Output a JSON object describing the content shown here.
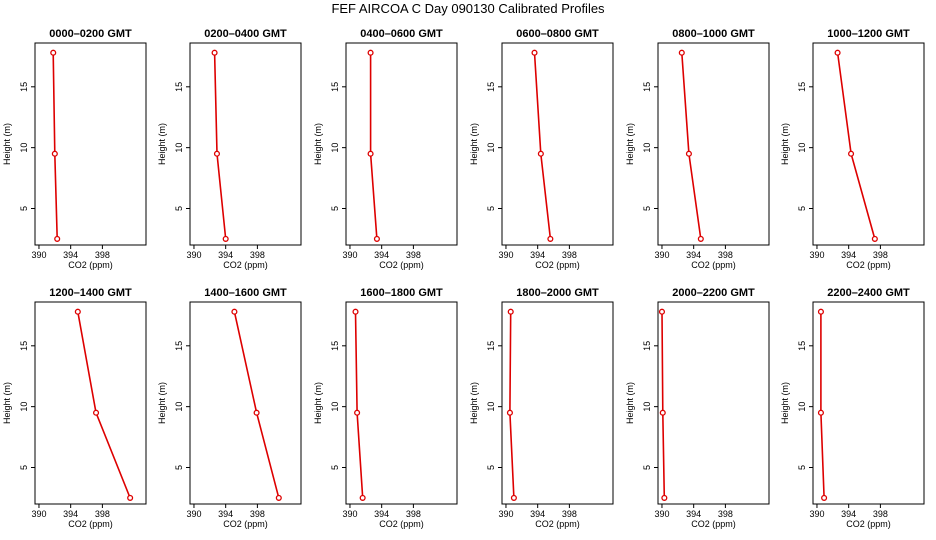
{
  "title": "FEF AIRCOA C  Day 090130  Calibrated Profiles",
  "chart_data": {
    "type": "line",
    "xlabel": "CO2 (ppm)",
    "ylabel": "Height (m)",
    "xlim": [
      389.5,
      403.5
    ],
    "ylim": [
      2,
      18.6
    ],
    "xticks": [
      390,
      394,
      398
    ],
    "yticks": [
      5,
      10,
      15
    ],
    "heights": [
      17.8,
      9.5,
      2.5
    ],
    "line_color": "#dd0000",
    "panels": [
      {
        "title": "0000–0200 GMT",
        "co2": [
          391.8,
          392.0,
          392.3
        ]
      },
      {
        "title": "0200–0400 GMT",
        "co2": [
          392.6,
          392.9,
          394.0
        ]
      },
      {
        "title": "0400–0600 GMT",
        "co2": [
          392.6,
          392.6,
          393.4
        ]
      },
      {
        "title": "0600–0800 GMT",
        "co2": [
          393.6,
          394.4,
          395.6
        ]
      },
      {
        "title": "0800–1000 GMT",
        "co2": [
          392.5,
          393.4,
          394.9
        ]
      },
      {
        "title": "1000–1200 GMT",
        "co2": [
          392.6,
          394.3,
          397.3
        ]
      },
      {
        "title": "1200–1400 GMT",
        "co2": [
          394.9,
          397.2,
          401.5
        ]
      },
      {
        "title": "1400–1600 GMT",
        "co2": [
          395.1,
          397.9,
          400.7
        ]
      },
      {
        "title": "1600–1800 GMT",
        "co2": [
          390.7,
          390.9,
          391.6
        ]
      },
      {
        "title": "1800–2000 GMT",
        "co2": [
          390.6,
          390.5,
          391.0
        ]
      },
      {
        "title": "2000–2200 GMT",
        "co2": [
          390.0,
          390.1,
          390.3
        ]
      },
      {
        "title": "2200–2400 GMT",
        "co2": [
          390.5,
          390.5,
          390.9
        ]
      }
    ]
  }
}
